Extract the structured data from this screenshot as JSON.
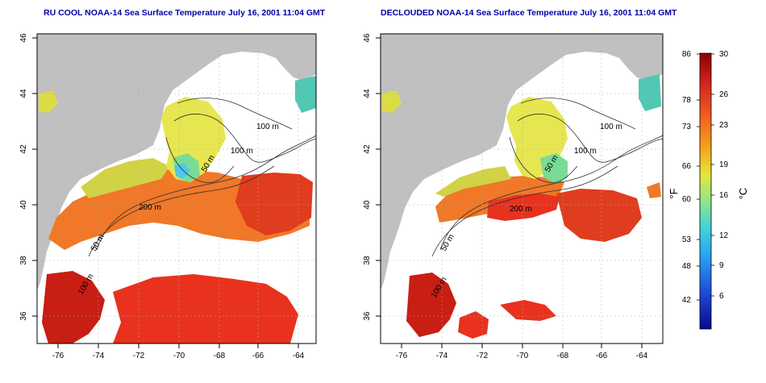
{
  "titles": {
    "left": "RU COOL NOAA-14 Sea Surface Temperature July 16, 2001 11:04 GMT",
    "right": "DECLOUDED NOAA-14 Sea Surface Temperature July 16, 2001 11:04 GMT"
  },
  "axes": {
    "lat_ticks": [
      "46",
      "44",
      "42",
      "40",
      "38",
      "36"
    ],
    "lon_ticks": [
      "-76",
      "-74",
      "-72",
      "-70",
      "-68",
      "-66",
      "-64"
    ]
  },
  "contours": {
    "m100a": "100 m",
    "m100b": "100 m",
    "m50": "50 m",
    "m200": "200 m",
    "m50s": "50 m",
    "m100s": "100 m"
  },
  "colorbar": {
    "f_ticks": [
      "86",
      "78",
      "73",
      "66",
      "60",
      "53",
      "48",
      "42"
    ],
    "c_ticks": [
      "30",
      "26",
      "23",
      "19",
      "16",
      "12",
      "9",
      "6"
    ],
    "f_label": "°F",
    "c_label": "°C"
  },
  "colors": {
    "land": "#c0c0c0",
    "cloud": "#ffffff",
    "warm": "#e8321e",
    "hot": "#b41414",
    "orange": "#f07828",
    "yellow": "#e6e650",
    "green": "#78dc78",
    "cyan": "#50c8e6"
  }
}
